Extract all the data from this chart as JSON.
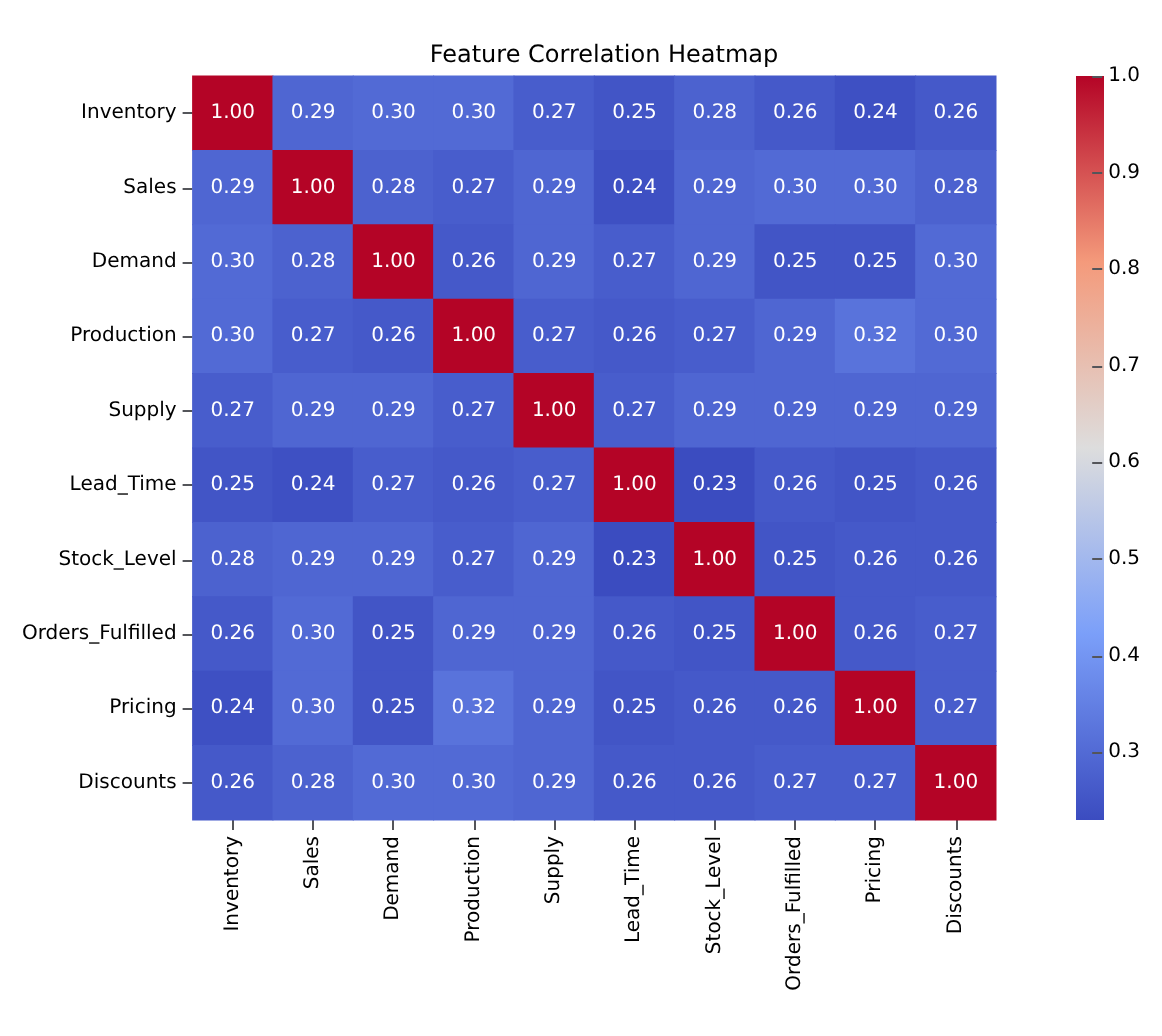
{
  "chart_data": {
    "type": "heatmap",
    "title": "Feature Correlation Heatmap",
    "categories": [
      "Inventory",
      "Sales",
      "Demand",
      "Production",
      "Supply",
      "Lead_Time",
      "Stock_Level",
      "Orders_Fulfilled",
      "Pricing",
      "Discounts"
    ],
    "y_categories": [
      "Inventory",
      "Sales",
      "Demand",
      "Production",
      "Supply",
      "Lead_Time",
      "Stock_Level",
      "Orders_Fulfilled",
      "Pricing",
      "Discounts"
    ],
    "cells": [
      [
        1.0,
        0.29,
        0.3,
        0.3,
        0.27,
        0.25,
        0.28,
        0.26,
        0.24,
        0.26
      ],
      [
        0.29,
        1.0,
        0.28,
        0.27,
        0.29,
        0.24,
        0.29,
        0.3,
        0.3,
        0.28
      ],
      [
        0.3,
        0.28,
        1.0,
        0.26,
        0.29,
        0.27,
        0.29,
        0.25,
        0.25,
        0.3
      ],
      [
        0.3,
        0.27,
        0.26,
        1.0,
        0.27,
        0.26,
        0.27,
        0.29,
        0.32,
        0.3
      ],
      [
        0.27,
        0.29,
        0.29,
        0.27,
        1.0,
        0.27,
        0.29,
        0.29,
        0.29,
        0.29
      ],
      [
        0.25,
        0.24,
        0.27,
        0.26,
        0.27,
        1.0,
        0.23,
        0.26,
        0.25,
        0.26
      ],
      [
        0.28,
        0.29,
        0.29,
        0.27,
        0.29,
        0.23,
        1.0,
        0.25,
        0.26,
        0.26
      ],
      [
        0.26,
        0.3,
        0.25,
        0.29,
        0.29,
        0.26,
        0.25,
        1.0,
        0.26,
        0.27
      ],
      [
        0.24,
        0.3,
        0.25,
        0.32,
        0.29,
        0.25,
        0.26,
        0.26,
        1.0,
        0.27
      ],
      [
        0.26,
        0.28,
        0.3,
        0.3,
        0.29,
        0.26,
        0.26,
        0.27,
        0.27,
        1.0
      ]
    ],
    "cell_labels": [
      [
        "1.00",
        "0.29",
        "0.30",
        "0.30",
        "0.27",
        "0.25",
        "0.28",
        "0.26",
        "0.24",
        "0.26"
      ],
      [
        "0.29",
        "1.00",
        "0.28",
        "0.27",
        "0.29",
        "0.24",
        "0.29",
        "0.30",
        "0.30",
        "0.28"
      ],
      [
        "0.30",
        "0.28",
        "1.00",
        "0.26",
        "0.29",
        "0.27",
        "0.29",
        "0.25",
        "0.25",
        "0.30"
      ],
      [
        "0.30",
        "0.27",
        "0.26",
        "1.00",
        "0.27",
        "0.26",
        "0.27",
        "0.29",
        "0.32",
        "0.30"
      ],
      [
        "0.27",
        "0.29",
        "0.29",
        "0.27",
        "1.00",
        "0.27",
        "0.29",
        "0.29",
        "0.29",
        "0.29"
      ],
      [
        "0.25",
        "0.24",
        "0.27",
        "0.26",
        "0.27",
        "1.00",
        "0.23",
        "0.26",
        "0.25",
        "0.26"
      ],
      [
        "0.28",
        "0.29",
        "0.29",
        "0.27",
        "0.29",
        "0.23",
        "1.00",
        "0.25",
        "0.26",
        "0.26"
      ],
      [
        "0.26",
        "0.30",
        "0.25",
        "0.29",
        "0.29",
        "0.26",
        "0.25",
        "1.00",
        "0.26",
        "0.27"
      ],
      [
        "0.24",
        "0.30",
        "0.25",
        "0.32",
        "0.29",
        "0.25",
        "0.26",
        "0.26",
        "1.00",
        "0.27"
      ],
      [
        "0.26",
        "0.28",
        "0.30",
        "0.30",
        "0.29",
        "0.26",
        "0.26",
        "0.27",
        "0.27",
        "1.00"
      ]
    ],
    "clim": [
      0.23,
      1.0
    ],
    "cticks": [
      0.3,
      0.4,
      0.5,
      0.6,
      0.7,
      0.8,
      0.9,
      {
        "value": 1.0,
        "label": "1.0"
      }
    ]
  }
}
